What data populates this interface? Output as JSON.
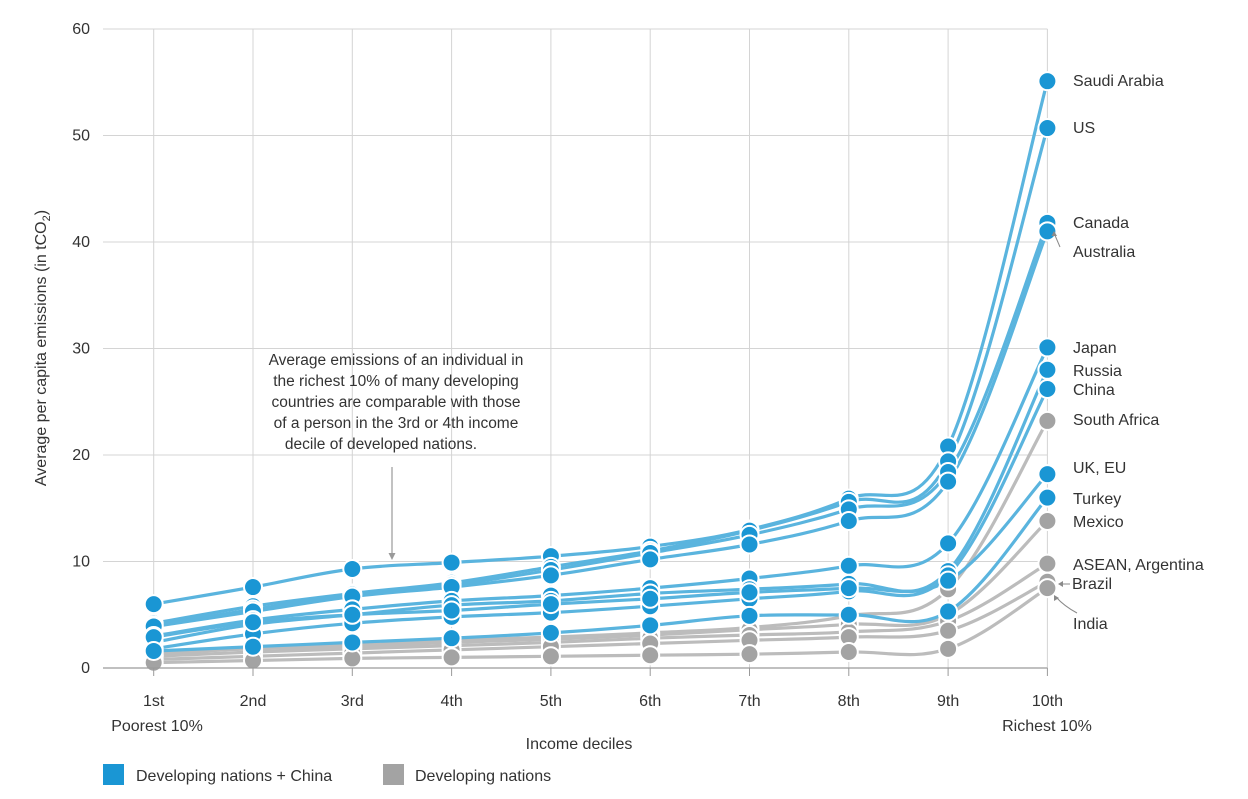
{
  "chart_data": {
    "type": "line",
    "title": "",
    "xlabel": "Income deciles",
    "ylabel": "Average per capita emissions (in tCO",
    "ylabel_sub": "2",
    "ylabel_close": ")",
    "ylim": [
      0,
      60
    ],
    "yticks": [
      "0",
      "10",
      "20",
      "30",
      "40",
      "50",
      "60"
    ],
    "categories": [
      "1st",
      "2nd",
      "3rd",
      "4th",
      "5th",
      "6th",
      "7th",
      "8th",
      "9th",
      "10th"
    ],
    "x_endpoint_labels": {
      "first": "Poorest 10%",
      "last": "Richest 10%"
    },
    "grid": true,
    "legend_position": "bottom-left",
    "groups": [
      {
        "name": "Developing nations + China",
        "color": "#1a96d4",
        "line_color": "#5ab4de"
      },
      {
        "name": "Developing nations",
        "color": "#a3a3a3",
        "line_color": "#bcbcbc"
      }
    ],
    "series": [
      {
        "name": "Saudi Arabia",
        "group": 0,
        "values": [
          6.0,
          7.6,
          9.3,
          9.9,
          10.5,
          11.4,
          13.0,
          15.9,
          20.8,
          55.1
        ]
      },
      {
        "name": "US",
        "group": 0,
        "values": [
          4.2,
          5.8,
          7.0,
          8.0,
          9.5,
          11.0,
          12.9,
          15.6,
          19.4,
          50.7
        ]
      },
      {
        "name": "Canada",
        "group": 0,
        "values": [
          4.0,
          5.5,
          6.9,
          7.8,
          9.2,
          10.8,
          12.5,
          14.9,
          18.4,
          41.8
        ]
      },
      {
        "name": "Australia",
        "group": 0,
        "values": [
          3.9,
          5.3,
          6.7,
          7.6,
          8.7,
          10.2,
          11.6,
          13.8,
          17.5,
          41.0
        ]
      },
      {
        "name": "Japan",
        "group": 0,
        "values": [
          3.0,
          4.5,
          5.5,
          6.3,
          6.8,
          7.5,
          8.4,
          9.6,
          11.7,
          30.1
        ]
      },
      {
        "name": "Russia",
        "group": 0,
        "values": [
          2.4,
          4.1,
          5.0,
          5.9,
          6.3,
          7.0,
          7.4,
          7.9,
          9.1,
          28.0
        ]
      },
      {
        "name": "China",
        "group": 0,
        "values": [
          1.8,
          3.2,
          4.2,
          4.8,
          5.2,
          5.8,
          6.5,
          7.2,
          8.7,
          26.2
        ]
      },
      {
        "name": "South Africa",
        "group": 1,
        "values": [
          1.2,
          1.9,
          2.2,
          2.6,
          2.9,
          3.3,
          3.8,
          4.9,
          7.4,
          23.2
        ]
      },
      {
        "name": "UK, EU",
        "group": 0,
        "values": [
          2.9,
          4.3,
          5.0,
          5.4,
          6.0,
          6.5,
          7.1,
          7.5,
          8.2,
          18.2
        ]
      },
      {
        "name": "Turkey",
        "group": 0,
        "values": [
          1.6,
          2.0,
          2.4,
          2.8,
          3.3,
          4.0,
          4.9,
          5.0,
          5.3,
          16.0
        ]
      },
      {
        "name": "Mexico",
        "group": 1,
        "values": [
          1.4,
          1.8,
          2.0,
          2.4,
          2.7,
          3.1,
          3.6,
          4.1,
          5.0,
          13.8
        ]
      },
      {
        "name": "ASEAN, Argentina",
        "group": 1,
        "values": [
          1.1,
          1.5,
          1.8,
          2.1,
          2.4,
          2.8,
          3.1,
          3.4,
          4.4,
          9.8
        ]
      },
      {
        "name": "Brazil",
        "group": 1,
        "values": [
          0.8,
          1.1,
          1.4,
          1.7,
          2.0,
          2.3,
          2.6,
          2.9,
          3.5,
          8.1
        ]
      },
      {
        "name": "India",
        "group": 1,
        "values": [
          0.5,
          0.7,
          0.9,
          1.0,
          1.1,
          1.2,
          1.3,
          1.5,
          1.8,
          7.5
        ]
      }
    ],
    "series_labels": [
      {
        "text": "Saudi Arabia",
        "series": "Saudi Arabia"
      },
      {
        "text": "US",
        "series": "US"
      },
      {
        "text": "Canada",
        "series": "Canada"
      },
      {
        "text": "Australia",
        "series": "Australia"
      },
      {
        "text": "Japan",
        "series": "Japan"
      },
      {
        "text": "Russia",
        "series": "Russia"
      },
      {
        "text": "China",
        "series": "China"
      },
      {
        "text": "South Africa",
        "series": "South Africa"
      },
      {
        "text": "UK, EU",
        "series": "UK, EU"
      },
      {
        "text": "Turkey",
        "series": "Turkey"
      },
      {
        "text": "Mexico",
        "series": "Mexico"
      },
      {
        "text": "ASEAN, Argentina",
        "series": "ASEAN, Argentina"
      },
      {
        "text": "Brazil",
        "series": "Brazil"
      },
      {
        "text": "India",
        "series": "India"
      }
    ],
    "annotation": {
      "lines": [
        "Average emissions of an individual in",
        "the richest 10% of many developing",
        "countries are comparable with those",
        "of a person in the 3rd or 4th income",
        "decile of developed nations."
      ]
    }
  }
}
